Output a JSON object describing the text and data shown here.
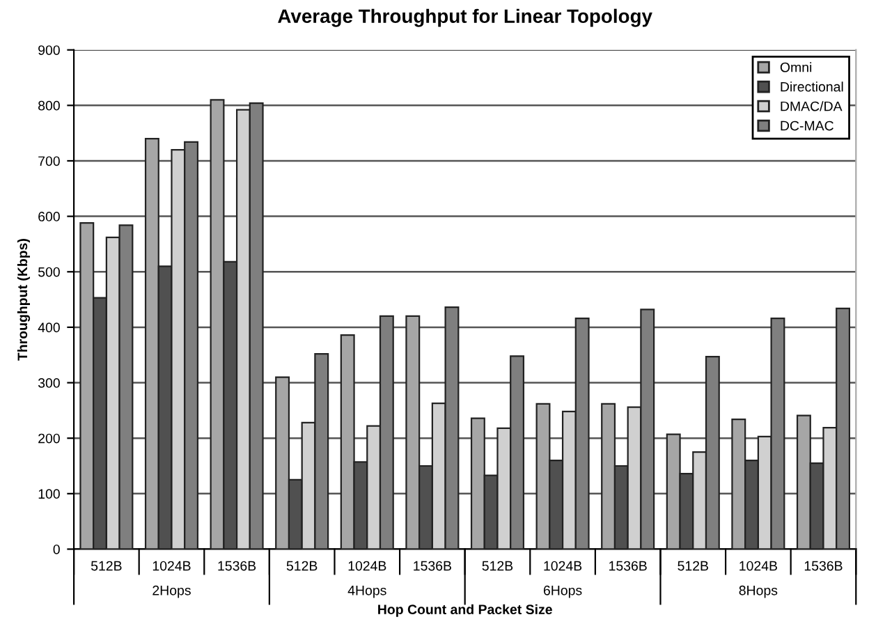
{
  "chart_data": {
    "type": "bar",
    "title": "Average Throughput for Linear Topology",
    "xlabel": "Hop Count and Packet Size",
    "ylabel": "Throughput (Kbps)",
    "categories": [
      "512B",
      "1024B",
      "1536B",
      "512B",
      "1024B",
      "1536B",
      "512B",
      "1024B",
      "1536B",
      "512B",
      "1024B",
      "1536B"
    ],
    "annotations": [
      "2Hops",
      "4Hops",
      "6Hops",
      "8Hops"
    ],
    "series": [
      {
        "name": "Omni",
        "color": "#a6a6a6",
        "values": [
          588,
          740,
          810,
          310,
          386,
          420,
          236,
          262,
          262,
          207,
          234,
          241
        ]
      },
      {
        "name": "Directional",
        "color": "#505050",
        "values": [
          453,
          510,
          518,
          125,
          157,
          150,
          133,
          160,
          150,
          136,
          160,
          155
        ]
      },
      {
        "name": "DMAC/DA",
        "color": "#d0d0d0",
        "values": [
          562,
          720,
          792,
          228,
          222,
          263,
          218,
          248,
          256,
          175,
          203,
          219
        ]
      },
      {
        "name": "DC-MAC",
        "color": "#7f7f7f",
        "values": [
          584,
          734,
          804,
          352,
          420,
          436,
          348,
          416,
          432,
          347,
          416,
          434
        ]
      }
    ],
    "ylim": [
      0,
      900
    ],
    "yticks": [
      0,
      100,
      200,
      300,
      400,
      500,
      600,
      700,
      800,
      900
    ],
    "grid": "y",
    "legend": "top right"
  }
}
